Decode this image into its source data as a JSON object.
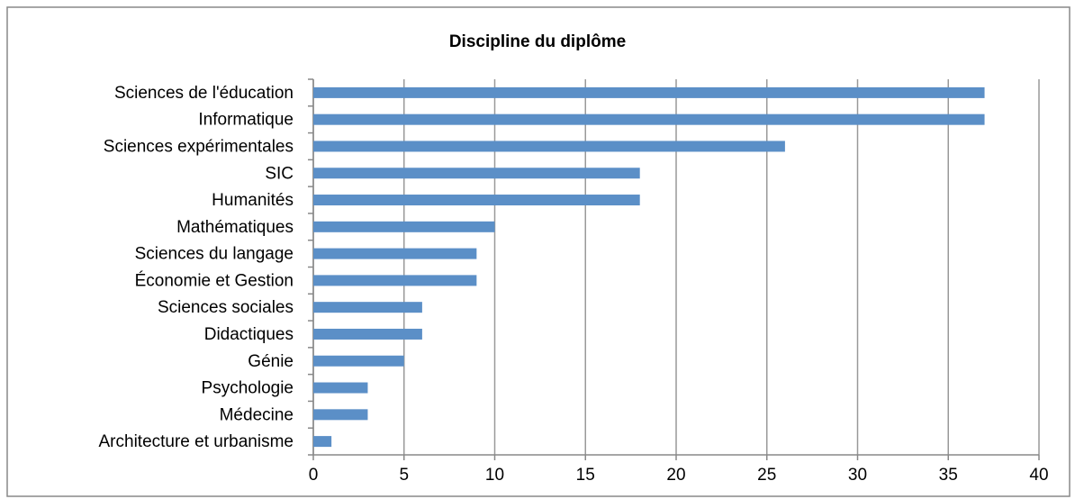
{
  "chart_data": {
    "type": "bar",
    "orientation": "horizontal",
    "title": "Discipline du diplôme",
    "categories": [
      "Sciences de l'éducation",
      "Informatique",
      "Sciences expérimentales",
      "SIC",
      "Humanités",
      "Mathématiques",
      "Sciences du langage",
      "Économie et Gestion",
      "Sciences sociales",
      "Didactiques",
      "Génie",
      "Psychologie",
      "Médecine",
      "Architecture et urbanisme"
    ],
    "values": [
      37,
      37,
      26,
      18,
      18,
      10,
      9,
      9,
      6,
      6,
      5,
      3,
      3,
      1
    ],
    "color": "#5b8fc7",
    "xlim": [
      0,
      40
    ],
    "xticks": [
      0,
      5,
      10,
      15,
      20,
      25,
      30,
      35,
      40
    ],
    "grid": true
  }
}
